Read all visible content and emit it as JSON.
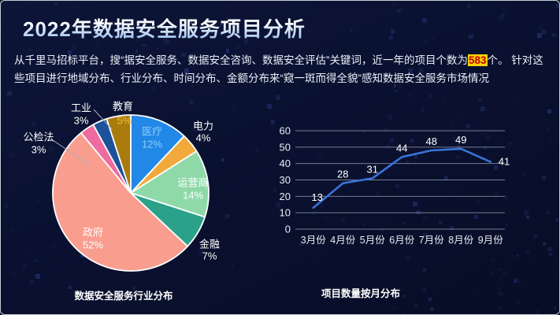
{
  "slide": {
    "title": "2022年数据安全服务项目分析",
    "description": {
      "before": "从千里马招标平台，搜“据安全服务、数据安全咨询、数据安全评估”关键词，近一年的项目个数为",
      "highlight": "583",
      "after": "个。 针对这些项目进行地域分布、行业分布、时间分布、金额分布来“窥一斑而得全貌”感知数据安全服务市场情况"
    },
    "colors": {
      "background": "#0a1130",
      "highlight_bg": "#ffd400",
      "highlight_text": "#c40000",
      "grid": "#9aa2b4",
      "axis_text": "#e9edf4"
    }
  },
  "chart_data": [
    {
      "type": "pie",
      "title": "数据安全服务行业分布",
      "categories": [
        "医疗",
        "电力",
        "运营商",
        "金融",
        "政府",
        "公检法",
        "工业",
        "教育"
      ],
      "values": [
        12,
        4,
        14,
        7,
        52,
        3,
        3,
        5
      ],
      "unit": "%",
      "start_angle": "top",
      "direction": "clockwise",
      "slice_colors": [
        "#2288e8",
        "#f2a93b",
        "#8fd9a9",
        "#2ba189",
        "#f99d8f",
        "#ef6a9f",
        "#1d5199",
        "#a97b0d"
      ],
      "slice_stroke": "#ffffff",
      "label_colors": {
        "name": [
          "#8fcdf9",
          "#ffffff",
          "#ffffff",
          "#ffffff",
          "#ffffff",
          "#ffffff",
          "#ffffff",
          "#ffffff"
        ],
        "pct": [
          "#8fcdf9",
          "#ffffff",
          "#ffffff",
          "#ffffff",
          "#ffffff",
          "#ffffff",
          "#ffffff",
          "#f0c33c"
        ]
      }
    },
    {
      "type": "line",
      "title": "项目数量按月分布",
      "categories": [
        "3月份",
        "4月份",
        "5月份",
        "6月份",
        "7月份",
        "8月份",
        "9月份"
      ],
      "values": [
        13,
        28,
        31,
        44,
        48,
        49,
        41
      ],
      "ylim": [
        0,
        60
      ],
      "ytick_step": 10,
      "grid": true,
      "legend": "none",
      "line_color": "#3a72d8",
      "label_color": "#ffffff"
    }
  ]
}
